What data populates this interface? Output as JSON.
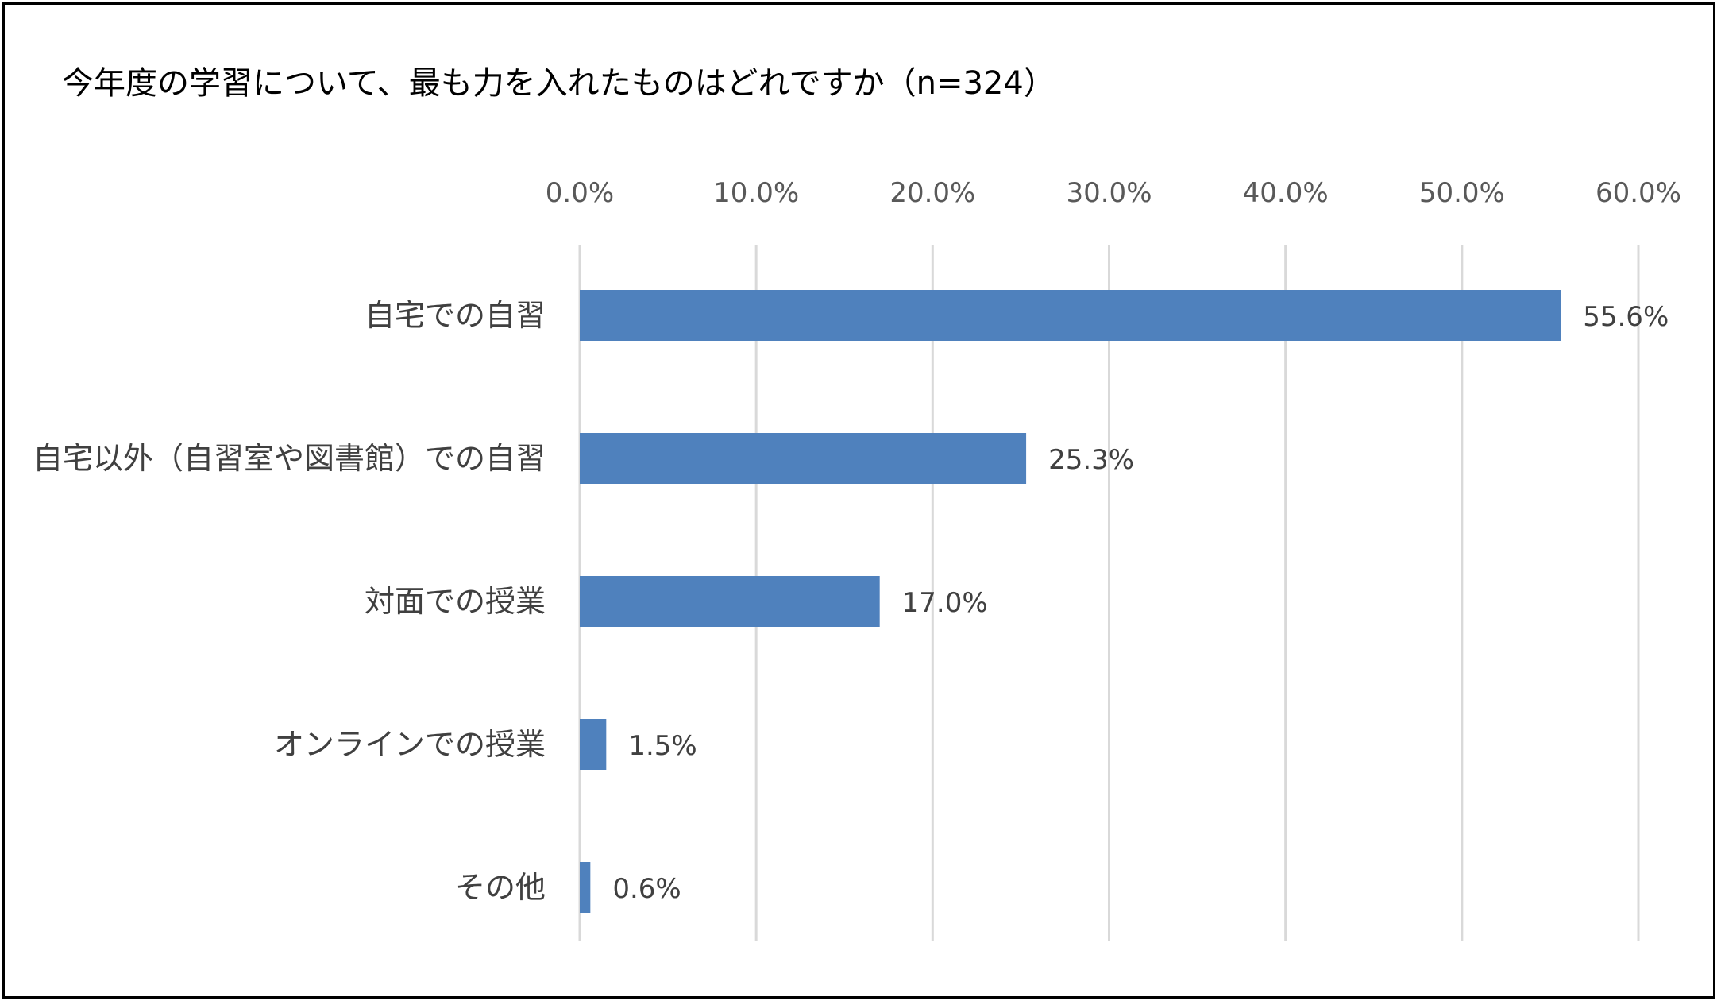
{
  "chart_data": {
    "type": "bar",
    "orientation": "horizontal",
    "title": "今年度の学習について、最も力を入れたものはどれですか（n=324）",
    "categories": [
      "自宅での自習",
      "自宅以外（自習室や図書館）での自習",
      "対面での授業",
      "オンラインでの授業",
      "その他"
    ],
    "values": [
      55.6,
      25.3,
      17.0,
      1.5,
      0.6
    ],
    "value_labels": [
      "55.6%",
      "25.3%",
      "17.0%",
      "1.5%",
      "0.6%"
    ],
    "xlim": [
      0,
      60
    ],
    "x_ticks": [
      0,
      10,
      20,
      30,
      40,
      50,
      60
    ],
    "x_tick_labels": [
      "0.0%",
      "10.0%",
      "20.0%",
      "30.0%",
      "40.0%",
      "50.0%",
      "60.0%"
    ],
    "x_axis_position": "top",
    "grid": "vertical",
    "legend": "none",
    "bar_color": "#4F81BD",
    "grid_color": "#D9D9D9"
  }
}
